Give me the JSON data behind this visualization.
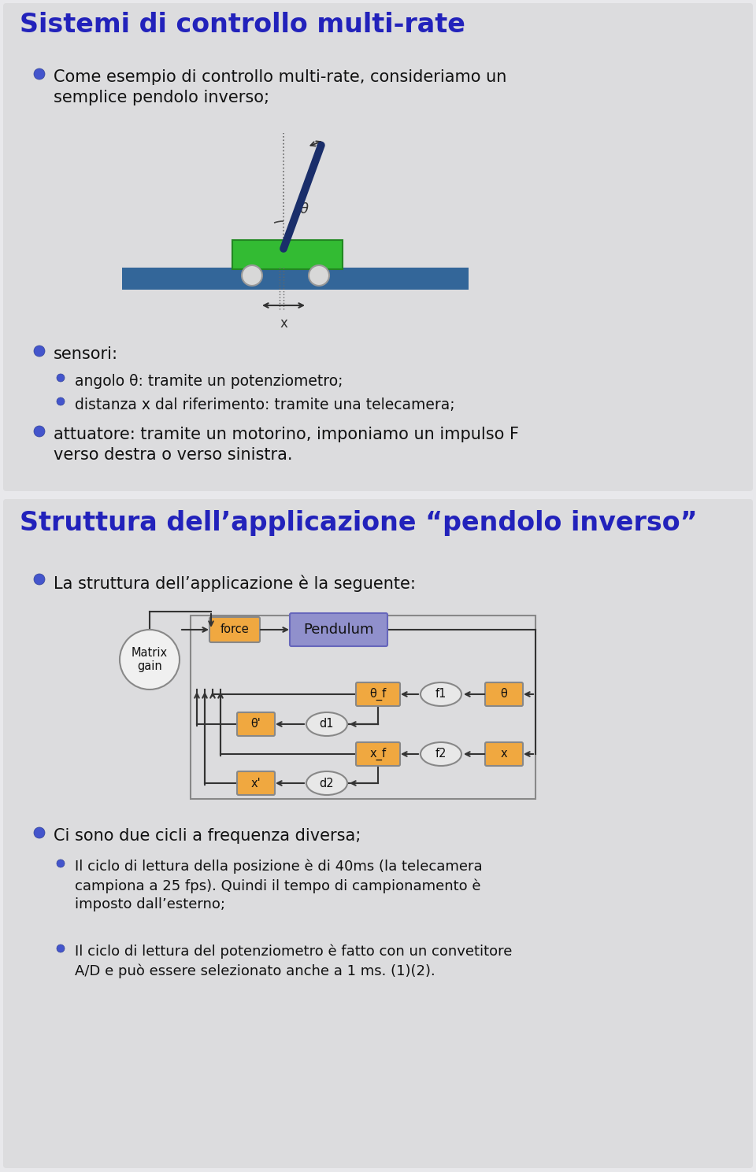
{
  "title1": "Sistemi di controllo multi-rate",
  "title2": "Struttura dell’applicazione “pendolo inverso”",
  "title_color": "#2222bb",
  "bg_color": "#e8e8eb",
  "slide_bg": "#dcdcde",
  "bullet_color": "#2244bb",
  "text_color": "#111111",
  "orange_box_color": "#f0a840",
  "blue_box_color": "#9090cc",
  "circle_fill": "#e8e8e8",
  "cart_color": "#33bb33",
  "rail_color": "#336699",
  "pendulum_color": "#1a2e6a",
  "diagram_border": "#888888",
  "arrow_color": "#333333",
  "slide1_texts": {
    "bullet1": "Come esempio di controllo multi-rate, consideriamo un\nsemplice pendolo inverso;",
    "sensori": "sensori:",
    "sub1": "angolo θ: tramite un potenziometro;",
    "sub2": "distanza x dal riferimento: tramite una telecamera;",
    "attuatore": "attuatore: tramite un motorino, imponiamo un impulso F\nverso destra o verso sinistra."
  },
  "slide2_texts": {
    "bullet1": "La struttura dell’applicazione è la seguente:",
    "bullet2": "Ci sono due cicli a frequenza diversa;",
    "sub1": "Il ciclo di lettura della posizione è di 40ms (la telecamera\ncampiona a 25 fps). Quindi il tempo di campionamento è\nimposto dall’esterno;",
    "sub2": "Il ciclo di lettura del potenziometro è fatto con un convetitore\nA/D e può essere selezionato anche a 1 ms. (1)(2)."
  }
}
